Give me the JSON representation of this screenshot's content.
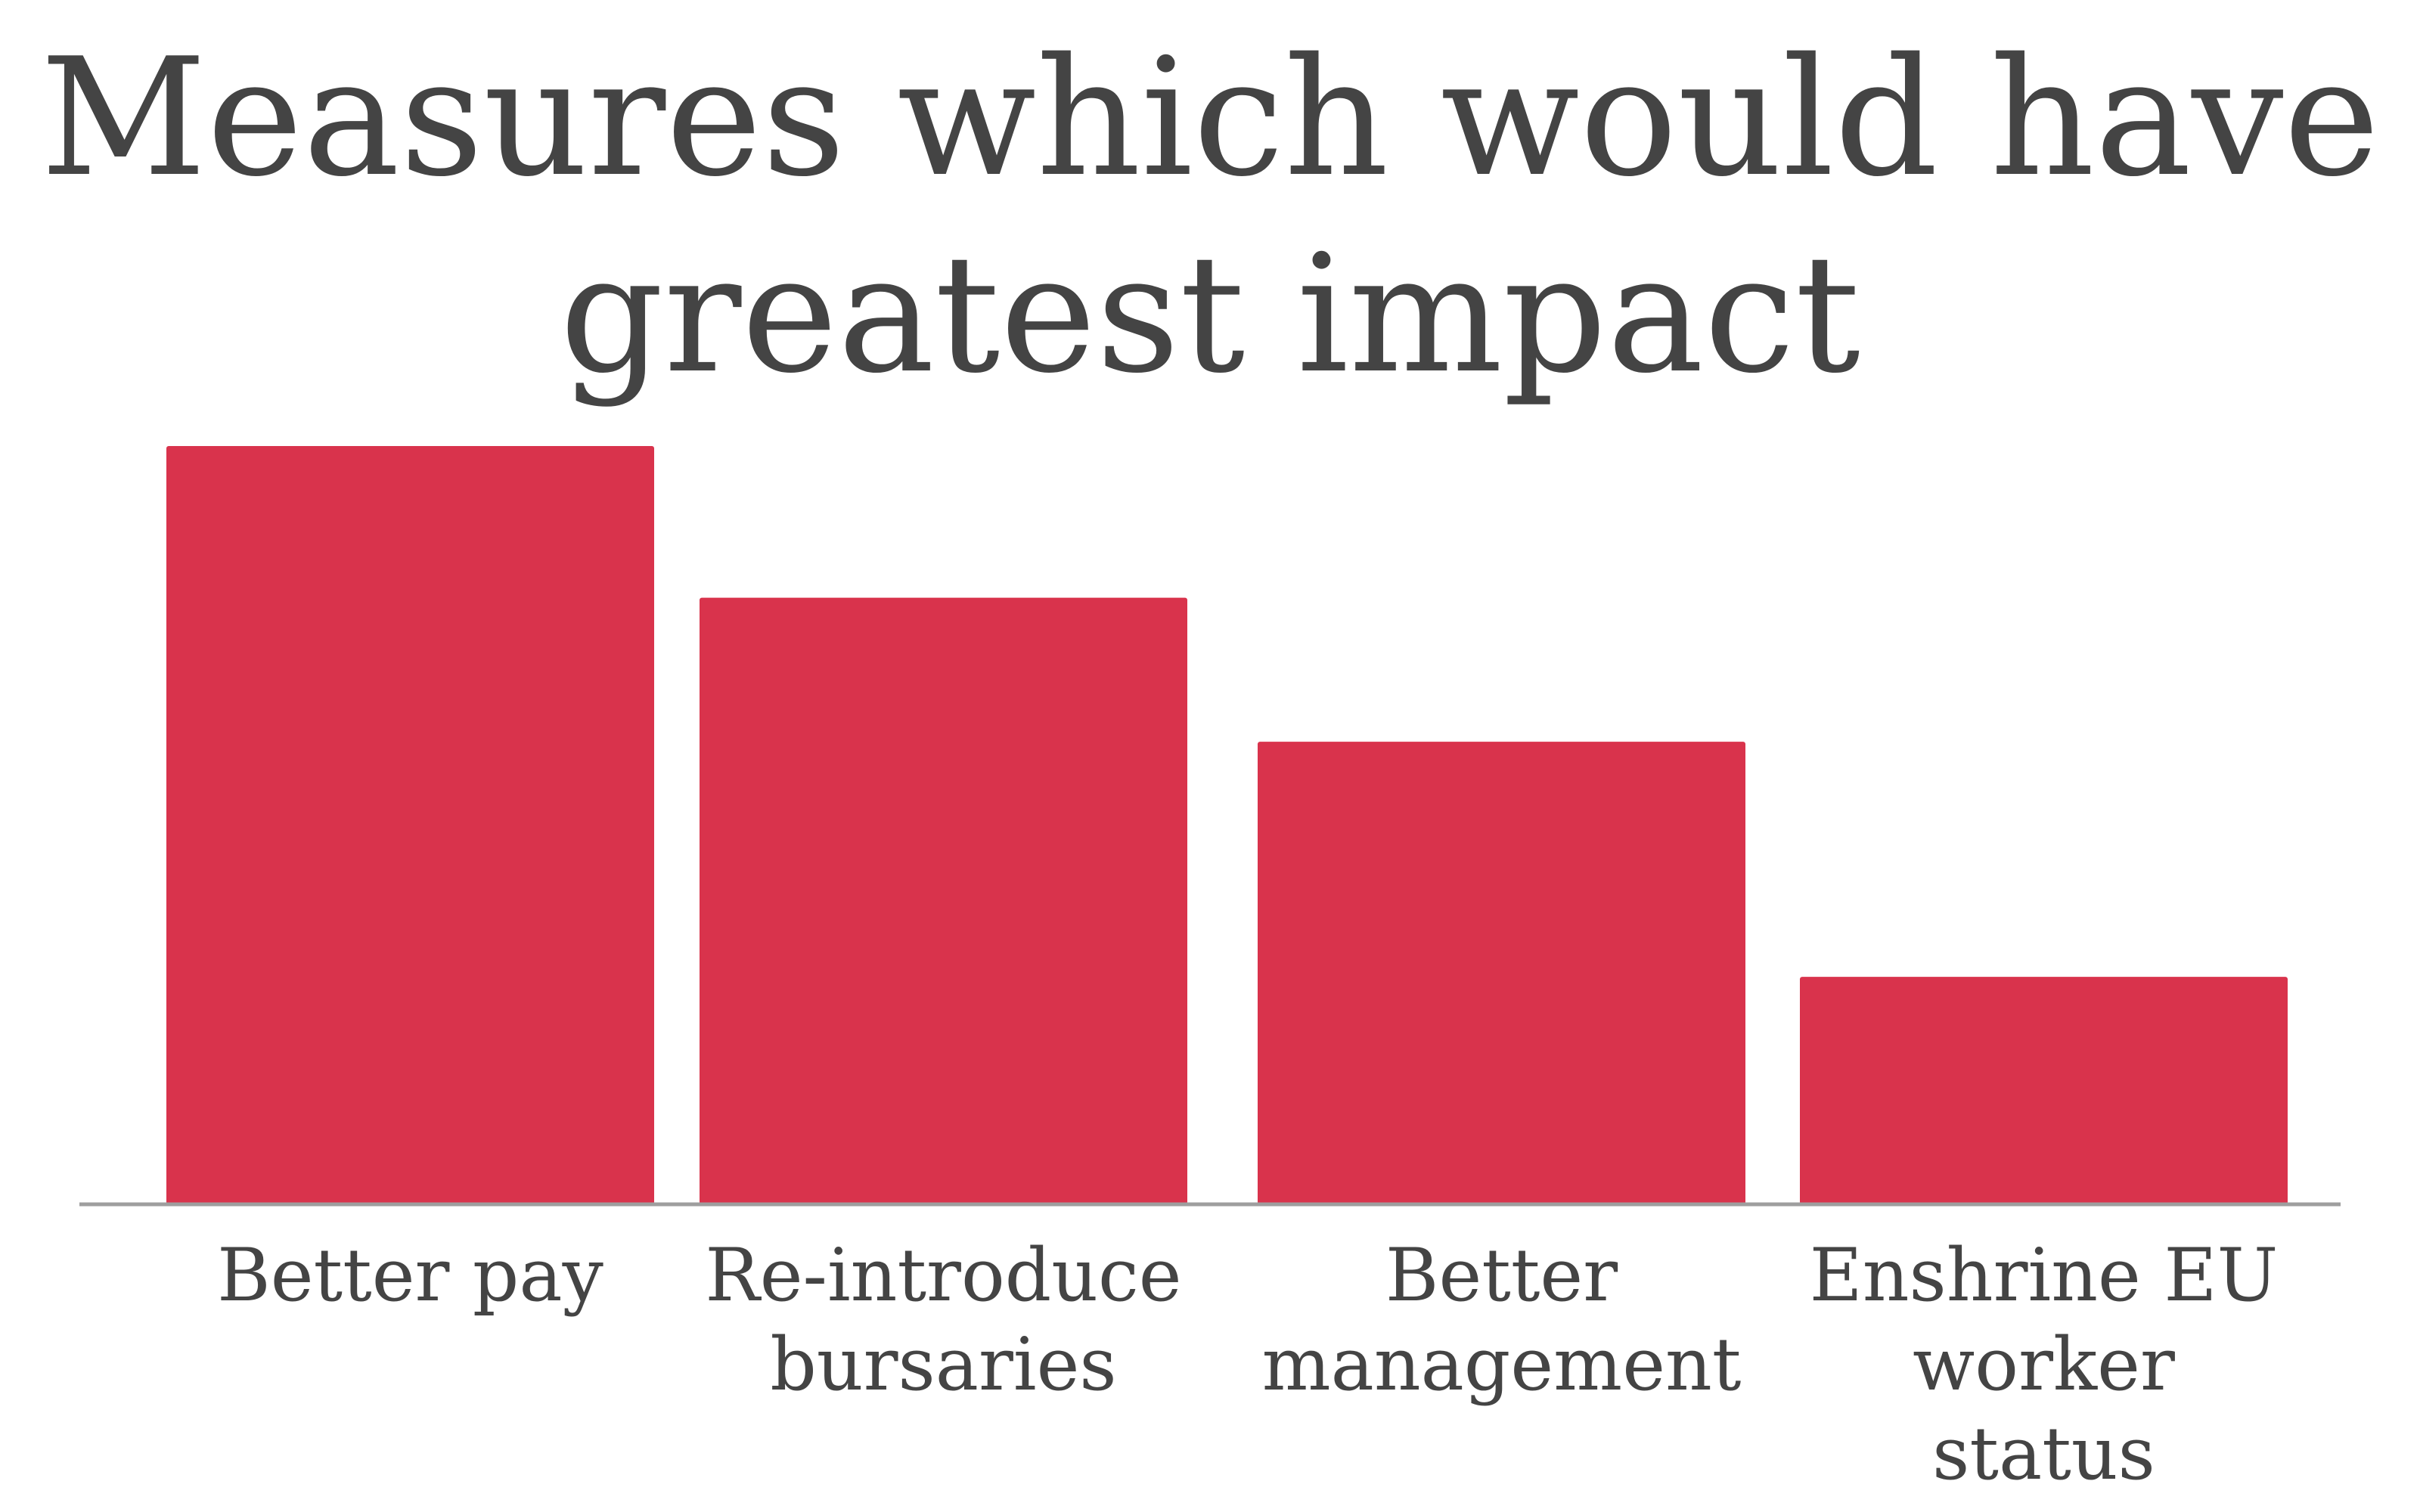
{
  "chart_data": {
    "type": "bar",
    "title": "Measures which would have greatest impact",
    "title_lines": [
      "Measures which would have",
      "greatest impact"
    ],
    "categories": [
      "Better pay",
      "Re-introduce bursaries",
      "Better management",
      "Enshrine EU worker status"
    ],
    "category_label_lines": [
      [
        "Better pay"
      ],
      [
        "Re-introduce",
        "bursaries"
      ],
      [
        "Better",
        "management"
      ],
      [
        "Enshrine EU",
        "worker",
        "status"
      ]
    ],
    "series": [
      {
        "values": [
          100,
          80,
          61,
          30
        ],
        "color": "#d9334c"
      }
    ],
    "ylim": [
      0,
      100
    ],
    "xlabel": "",
    "ylabel": "",
    "grid": false,
    "legend": "none",
    "axis_color": "#9e9e9e",
    "text_color": "#444444"
  }
}
